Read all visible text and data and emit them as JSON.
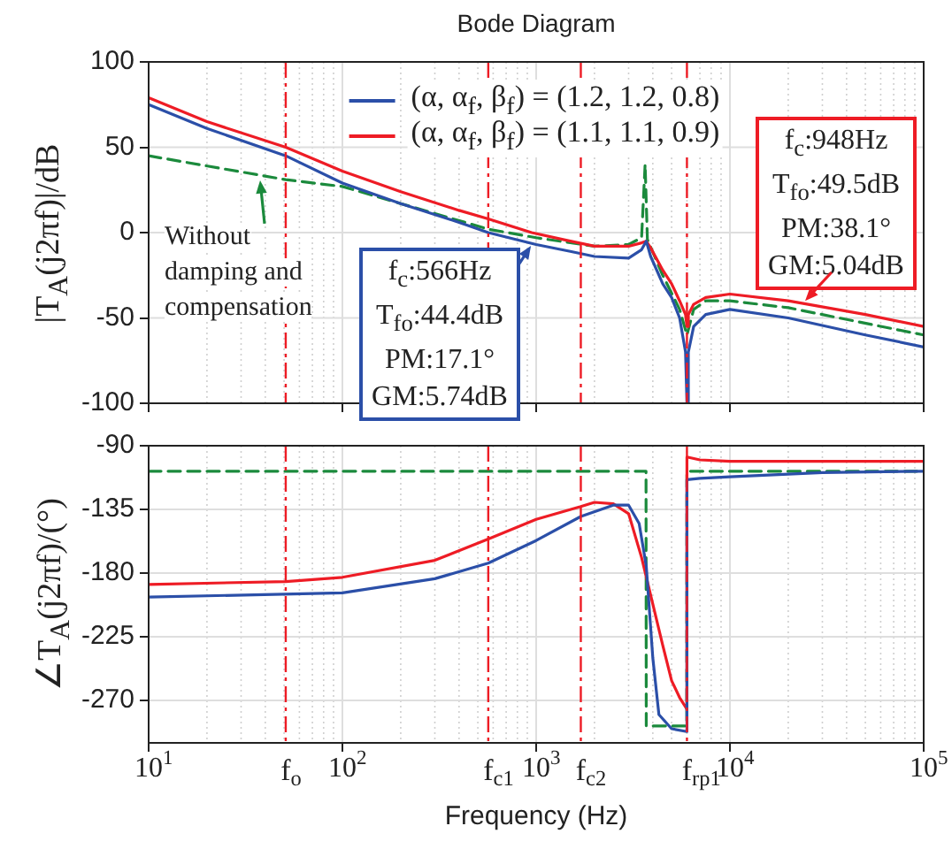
{
  "chart_data": [
    {
      "type": "line",
      "title": "Bode Diagram",
      "ylabel": "|T$_{A}$(j2πf)|/dB",
      "log": "x",
      "xlim": [
        10,
        100000
      ],
      "ylim": [
        -100,
        100
      ],
      "yticks": [
        -100,
        -50,
        0,
        50,
        100
      ],
      "xticks": [
        {
          "value": 10,
          "label": null
        },
        {
          "value": 100,
          "label": null
        },
        {
          "value": 1000,
          "label": null
        },
        {
          "value": 10000,
          "label": null
        },
        {
          "value": 100000,
          "label": null
        }
      ],
      "tick_labels": "y",
      "grid": true,
      "legend": "top",
      "marker": "none",
      "series": [
        {
          "name": "(α, α$_{f}$, β$_{f}$) = (1.2, 1.2, 0.8)",
          "color": "#2b4fa8",
          "x": [
            10,
            20,
            51,
            100,
            200,
            400,
            566,
            1000,
            1500,
            2000,
            3000,
            3500,
            3700,
            3900,
            4500,
            5000,
            5500,
            5900,
            6000,
            6100,
            6500,
            7500,
            10000,
            20000,
            50000,
            100000
          ],
          "values": [
            75,
            61,
            45,
            29,
            17,
            6,
            0,
            -7,
            -11,
            -14,
            -15,
            -10,
            -5,
            -14,
            -30,
            -38,
            -50,
            -70,
            -100,
            -70,
            -55,
            -48,
            -45,
            -50,
            -60,
            -67
          ]
        },
        {
          "name": "(α, α$_{f}$, β$_{f}$) = (1.1, 1.1, 0.9)",
          "color": "#ee1c25",
          "x": [
            10,
            20,
            51,
            100,
            200,
            400,
            566,
            948,
            1500,
            2000,
            3000,
            3500,
            3700,
            3900,
            4500,
            5000,
            5500,
            5900,
            6000,
            6100,
            6500,
            7500,
            10000,
            20000,
            50000,
            100000
          ],
          "values": [
            79,
            65,
            50,
            36,
            24,
            13,
            8,
            0,
            -5,
            -8,
            -8,
            -6,
            -5,
            -9,
            -22,
            -30,
            -40,
            -48,
            -55,
            -48,
            -42,
            -38,
            -36,
            -40,
            -48,
            -55
          ]
        },
        {
          "color": "#1b8a3c",
          "line_style": "dashed",
          "x": [
            10,
            51,
            100,
            566,
            1000,
            2000,
            3000,
            3500,
            3650,
            3750,
            4500,
            5500,
            6000,
            6500,
            7500,
            10000,
            20000,
            100000
          ],
          "values": [
            45,
            31,
            27,
            2,
            -3,
            -8,
            -7,
            -3,
            40,
            -4,
            -25,
            -45,
            -60,
            -45,
            -40,
            -40,
            -44,
            -60
          ]
        }
      ],
      "ref_lines": [
        {
          "axis": "x",
          "value": 51,
          "color": "#ee1c25",
          "line_style": "dashed"
        },
        {
          "axis": "x",
          "value": 566,
          "color": "#ee1c25",
          "line_style": "dashed"
        },
        {
          "axis": "x",
          "value": 1700,
          "color": "#ee1c25",
          "line_style": "dashed"
        },
        {
          "axis": "x",
          "value": 6000,
          "color": "#ee1c25",
          "line_style": "dashed"
        }
      ],
      "annotations": [
        {
          "text": "Without damping and compensation",
          "x": 38,
          "y": 31
        },
        {
          "text": "f$_{c}$:566Hz\nT$_{fo}$:44.4dB\nPM:17.1°\nGM:5.74dB",
          "x": 940,
          "y": -8
        },
        {
          "text": "f$_{c}$:948Hz\nT$_{fo}$:49.5dB\nPM:38.1°\nGM:5.04dB",
          "x": 24500,
          "y": -40
        }
      ]
    },
    {
      "type": "line",
      "xlabel": "Frequency  (Hz)",
      "ylabel": "∠T$_{A}$(j2πf)/(°)",
      "log": "x",
      "xlim": [
        10,
        100000
      ],
      "ylim": [
        -300,
        -90
      ],
      "yticks": [
        -270,
        -225,
        -180,
        -135,
        -90
      ],
      "xticks": [
        {
          "value": 10,
          "label": "10$^{1}$"
        },
        {
          "value": 100,
          "label": "10$^{2}$"
        },
        {
          "value": 1000,
          "label": "10$^{3}$"
        },
        {
          "value": 10000,
          "label": "10$^{4}$"
        },
        {
          "value": 100000,
          "label": "10$^{5}$"
        }
      ],
      "grid": true,
      "marker": "none",
      "series": [
        {
          "color": "#2b4fa8",
          "x": [
            10,
            100,
            300,
            566,
            1000,
            1700,
            2500,
            3000,
            3400,
            3700,
            4000,
            4300,
            5000,
            5990,
            6000,
            7000,
            10000,
            30000,
            100000
          ],
          "values": [
            -197,
            -194,
            -184,
            -173,
            -157,
            -140,
            -132,
            -132,
            -145,
            -175,
            -240,
            -280,
            -290,
            -292,
            -114,
            -113,
            -112,
            -109,
            -108
          ]
        },
        {
          "color": "#ee1c25",
          "x": [
            10,
            51,
            100,
            300,
            566,
            1000,
            1700,
            2000,
            2500,
            3000,
            3500,
            4000,
            4500,
            5000,
            5500,
            5990,
            6000,
            7000,
            10000,
            100000
          ],
          "values": [
            -188,
            -186,
            -183,
            -171,
            -156,
            -142,
            -133,
            -130,
            -131,
            -138,
            -169,
            -202,
            -231,
            -256,
            -268,
            -276,
            -98,
            -100,
            -101,
            -101
          ]
        },
        {
          "color": "#1b8a3c",
          "line_style": "dashed",
          "x": [
            10,
            3690,
            3700,
            5990,
            6000,
            100000
          ],
          "values": [
            -108,
            -108,
            -288,
            -288,
            -108,
            -108
          ]
        }
      ],
      "ref_lines": [
        {
          "axis": "x",
          "value": 51,
          "label": "f$_{o}$",
          "color": "#ee1c25",
          "line_style": "dashed"
        },
        {
          "axis": "x",
          "value": 566,
          "label": "f$_{c1}$",
          "color": "#ee1c25",
          "line_style": "dashed"
        },
        {
          "axis": "x",
          "value": 1700,
          "label": "f$_{c2}$",
          "color": "#ee1c25",
          "line_style": "dashed"
        },
        {
          "axis": "x",
          "value": 6000,
          "label": "f$_{rp1}$",
          "color": "#ee1c25",
          "line_style": "dashed"
        }
      ]
    }
  ]
}
